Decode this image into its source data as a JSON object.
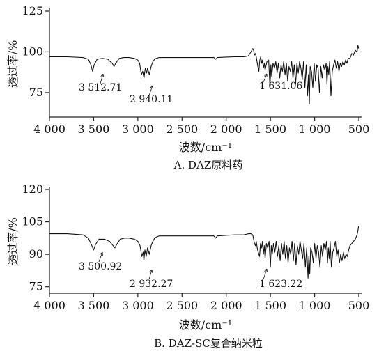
{
  "chart_data": [
    {
      "type": "line",
      "caption": "A. DAZ原料药",
      "xlabel": "波数/cm⁻¹",
      "ylabel": "透过率/%",
      "xlim": [
        4000,
        500
      ],
      "ylim": [
        60,
        125
      ],
      "xticks": [
        4000,
        3500,
        3000,
        2500,
        2000,
        1500,
        1000,
        500
      ],
      "xtick_labels": [
        "4 000",
        "3 500",
        "3 000",
        "2 500",
        "2 000",
        "1 500",
        "1 000",
        "500"
      ],
      "yticks": [
        75,
        100,
        125
      ],
      "ytick_labels": [
        "75",
        "100",
        "125"
      ],
      "annotations": [
        {
          "label": "3 512.71",
          "x": 3512.71,
          "y": 89
        },
        {
          "label": "2 940.11",
          "x": 2940.11,
          "y": 87
        },
        {
          "label": "1 631.06",
          "x": 1631.06,
          "y": 90
        }
      ],
      "series": [
        {
          "x": [
            4000,
            3800,
            3620,
            3560,
            3530,
            3512,
            3495,
            3460,
            3400,
            3340,
            3290,
            3270,
            3250,
            3210,
            3160,
            3100,
            3040,
            3000,
            2980,
            2960,
            2945,
            2930,
            2915,
            2900,
            2890,
            2870,
            2850,
            2830,
            2810,
            2790,
            2760,
            2700,
            2500,
            2300,
            2140,
            2120,
            2100,
            2000,
            1900,
            1800,
            1750,
            1720,
            1700,
            1690,
            1680,
            1670,
            1660,
            1645,
            1631,
            1620,
            1610,
            1598,
            1590,
            1580,
            1570,
            1560,
            1540,
            1520,
            1505,
            1495,
            1485,
            1470,
            1455,
            1440,
            1425,
            1410,
            1395,
            1380,
            1365,
            1350,
            1335,
            1320,
            1305,
            1290,
            1275,
            1260,
            1245,
            1230,
            1215,
            1200,
            1185,
            1170,
            1155,
            1140,
            1125,
            1110,
            1095,
            1080,
            1070,
            1060,
            1050,
            1035,
            1020,
            1005,
            990,
            975,
            960,
            945,
            930,
            915,
            900,
            885,
            870,
            860,
            850,
            840,
            830,
            815,
            800,
            785,
            770,
            755,
            740,
            725,
            710,
            695,
            680,
            665,
            650,
            635,
            620,
            600,
            580,
            560,
            540,
            520,
            510,
            500
          ],
          "y": [
            97,
            97,
            96.5,
            95.5,
            92,
            88,
            92,
            95.5,
            96,
            95.5,
            93,
            91,
            93,
            96,
            96.5,
            96.5,
            96,
            95,
            93,
            86,
            88,
            84,
            90,
            87,
            90,
            86,
            91,
            94,
            95.5,
            96,
            96.5,
            96.5,
            96.5,
            96.5,
            96.5,
            95.5,
            96.5,
            96.8,
            97,
            97,
            97.5,
            100,
            102,
            101,
            98,
            99,
            97,
            92,
            88,
            95,
            97,
            93,
            95,
            90,
            93,
            89,
            94,
            95,
            78,
            92,
            85,
            93,
            90,
            94,
            87,
            93,
            84,
            92,
            88,
            94,
            86,
            93,
            82,
            91,
            88,
            94,
            84,
            92,
            80,
            93,
            87,
            94,
            90,
            83,
            94,
            78,
            92,
            73,
            86,
            68,
            91,
            88,
            78,
            93,
            82,
            92,
            90,
            75,
            91,
            84,
            92,
            89,
            93,
            80,
            91,
            86,
            94,
            73,
            88,
            92,
            95,
            90,
            94,
            88,
            93,
            91,
            94,
            92,
            95,
            93,
            96,
            96,
            99,
            98,
            101,
            100,
            104,
            102
          ]
        }
      ]
    },
    {
      "type": "line",
      "caption": "B. DAZ-SC复合纳米粒",
      "xlabel": "波数/cm⁻¹",
      "ylabel": "透过率/%",
      "xlim": [
        4000,
        500
      ],
      "ylim": [
        72,
        120
      ],
      "xticks": [
        4000,
        3500,
        3000,
        2500,
        2000,
        1500,
        1000,
        500
      ],
      "xtick_labels": [
        "4 000",
        "3 500",
        "3 000",
        "2 500",
        "2 000",
        "1 500",
        "1 000",
        "500"
      ],
      "yticks": [
        75,
        90,
        105,
        120
      ],
      "ytick_labels": [
        "75",
        "90",
        "105",
        "120"
      ],
      "annotations": [
        {
          "label": "3 500.92",
          "x": 3500.92,
          "y": 91
        },
        {
          "label": "2 932.27",
          "x": 2932.27,
          "y": 88
        },
        {
          "label": "1 623.22",
          "x": 1623.22,
          "y": 90
        }
      ],
      "series": [
        {
          "x": [
            4000,
            3800,
            3620,
            3560,
            3520,
            3500,
            3480,
            3440,
            3380,
            3320,
            3280,
            3260,
            3240,
            3200,
            3150,
            3100,
            3040,
            3000,
            2975,
            2955,
            2940,
            2932,
            2920,
            2905,
            2890,
            2870,
            2850,
            2830,
            2810,
            2790,
            2760,
            2700,
            2500,
            2300,
            2140,
            2120,
            2100,
            2000,
            1900,
            1800,
            1750,
            1720,
            1700,
            1690,
            1680,
            1670,
            1660,
            1645,
            1623,
            1612,
            1600,
            1590,
            1580,
            1570,
            1560,
            1545,
            1530,
            1515,
            1500,
            1490,
            1480,
            1465,
            1450,
            1435,
            1420,
            1405,
            1390,
            1375,
            1360,
            1345,
            1330,
            1315,
            1300,
            1285,
            1270,
            1255,
            1240,
            1225,
            1210,
            1195,
            1180,
            1165,
            1150,
            1135,
            1120,
            1105,
            1090,
            1075,
            1065,
            1055,
            1045,
            1030,
            1015,
            1000,
            985,
            970,
            955,
            940,
            925,
            910,
            895,
            880,
            865,
            855,
            845,
            835,
            825,
            810,
            795,
            780,
            765,
            750,
            735,
            720,
            705,
            690,
            675,
            660,
            645,
            630,
            615,
            600,
            580,
            560,
            540,
            520,
            510,
            502
          ],
          "y": [
            99.5,
            99.5,
            99,
            97.5,
            94,
            92,
            94.5,
            97,
            97,
            96,
            94,
            93,
            94.5,
            97,
            97.5,
            97.5,
            97,
            96,
            94,
            89,
            91,
            87,
            92,
            89,
            93,
            90,
            94,
            96,
            97.5,
            98,
            98.5,
            98.5,
            98.5,
            98.5,
            98.5,
            97.5,
            98.5,
            98.8,
            99,
            99,
            99.5,
            99.5,
            99,
            97,
            95,
            94,
            96,
            92,
            89,
            95,
            93,
            96,
            90,
            94,
            88,
            95,
            93,
            96,
            84,
            94,
            90,
            95,
            91,
            96,
            89,
            94,
            87,
            95,
            90,
            96,
            88,
            94,
            86,
            93,
            90,
            96,
            87,
            95,
            85,
            94,
            90,
            96,
            92,
            88,
            95,
            84,
            93,
            79,
            89,
            81,
            93,
            91,
            86,
            95,
            88,
            94,
            91,
            84,
            94,
            89,
            95,
            92,
            96,
            86,
            93,
            88,
            96,
            84,
            91,
            93,
            96,
            89,
            92,
            86,
            90,
            87,
            91,
            88,
            90,
            89,
            92,
            94,
            95,
            96,
            97,
            99,
            101,
            103
          ]
        }
      ]
    }
  ]
}
